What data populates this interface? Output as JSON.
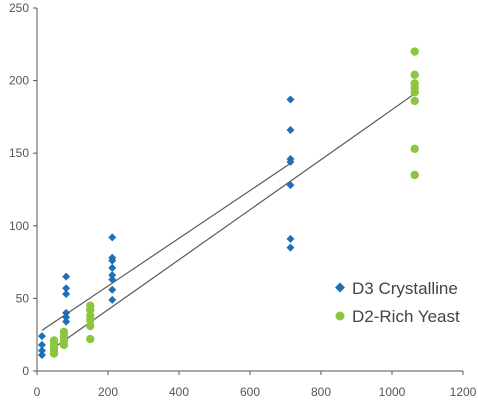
{
  "chart_data": {
    "type": "scatter",
    "title": "",
    "xlabel": "",
    "ylabel": "",
    "xlim": [
      0,
      1200
    ],
    "ylim": [
      0,
      250
    ],
    "x_ticks": [
      0,
      200,
      400,
      600,
      800,
      1000,
      1200
    ],
    "y_ticks": [
      0,
      50,
      100,
      150,
      200,
      250
    ],
    "grid": false,
    "legend_position": "bottom-right",
    "series": [
      {
        "name": "D3 Crystalline",
        "marker": "diamond",
        "color": "#1f6fb5",
        "points": [
          [
            14,
            11
          ],
          [
            14,
            14
          ],
          [
            14,
            18
          ],
          [
            14,
            24
          ],
          [
            82,
            34
          ],
          [
            82,
            37
          ],
          [
            82,
            40
          ],
          [
            82,
            53
          ],
          [
            82,
            57
          ],
          [
            82,
            65
          ],
          [
            212,
            49
          ],
          [
            212,
            56
          ],
          [
            212,
            63
          ],
          [
            212,
            66
          ],
          [
            212,
            71
          ],
          [
            212,
            76
          ],
          [
            212,
            78
          ],
          [
            212,
            92
          ],
          [
            714,
            85
          ],
          [
            714,
            91
          ],
          [
            714,
            128
          ],
          [
            714,
            144
          ],
          [
            714,
            146
          ],
          [
            714,
            166
          ],
          [
            714,
            187
          ]
        ],
        "trendline": {
          "x": [
            14,
            714
          ],
          "y": [
            28,
            143
          ]
        }
      },
      {
        "name": "D2-Rich Yeast",
        "marker": "circle",
        "color": "#8cc63f",
        "points": [
          [
            48,
            12
          ],
          [
            48,
            14
          ],
          [
            48,
            16
          ],
          [
            48,
            19
          ],
          [
            48,
            21
          ],
          [
            76,
            18
          ],
          [
            76,
            21
          ],
          [
            76,
            24
          ],
          [
            76,
            27
          ],
          [
            150,
            22
          ],
          [
            150,
            31
          ],
          [
            150,
            35
          ],
          [
            150,
            38
          ],
          [
            150,
            42
          ],
          [
            150,
            45
          ],
          [
            1064,
            135
          ],
          [
            1064,
            153
          ],
          [
            1064,
            186
          ],
          [
            1064,
            192
          ],
          [
            1064,
            195
          ],
          [
            1064,
            198
          ],
          [
            1064,
            204
          ],
          [
            1064,
            220
          ]
        ],
        "trendline": {
          "x": [
            48,
            1064
          ],
          "y": [
            16,
            191
          ]
        }
      }
    ]
  },
  "legend": {
    "items": [
      {
        "label": "D3 Crystalline"
      },
      {
        "label": "D2-Rich Yeast"
      }
    ]
  }
}
